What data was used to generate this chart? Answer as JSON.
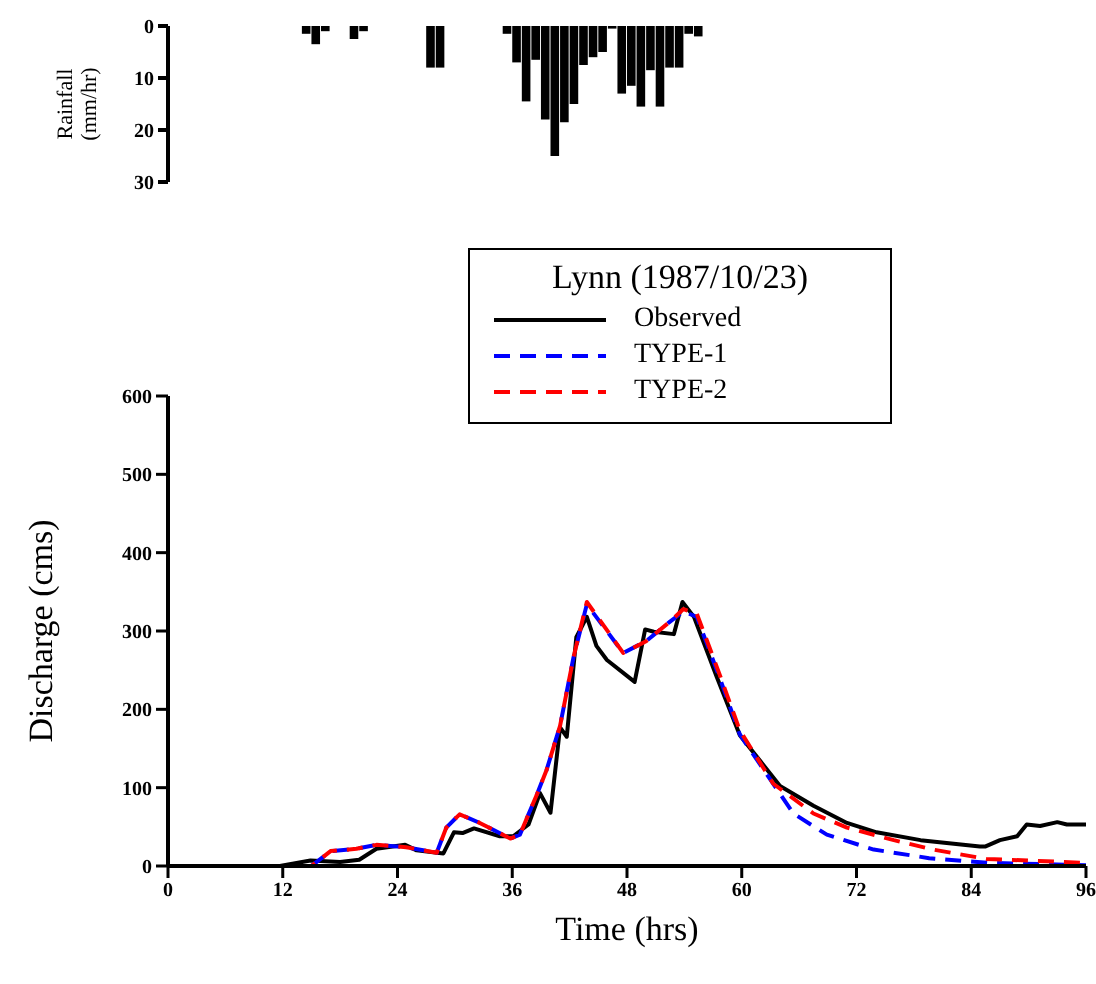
{
  "chart_data": [
    {
      "type": "bar",
      "ylabel": "Rainfall (mm/hr)",
      "x": [
        14.5,
        15.5,
        16.5,
        19.5,
        20.5,
        27.5,
        28.5,
        35.5,
        36.5,
        37.5,
        38.5,
        39.5,
        40.5,
        41.5,
        42.5,
        43.5,
        44.5,
        45.5,
        46.5,
        47.5,
        48.5,
        49.5,
        50.5,
        51.5,
        52.5,
        53.5,
        54.5,
        55.5
      ],
      "values": [
        1.5,
        3.5,
        1,
        2.5,
        1,
        8,
        8,
        1.5,
        7,
        14.5,
        6.5,
        18,
        25,
        18.5,
        15,
        7.5,
        6,
        5,
        0.5,
        13,
        11.5,
        15.5,
        8.5,
        15.5,
        8,
        8,
        1.5,
        2
      ],
      "color": "#000000",
      "xlim": [
        0,
        96
      ],
      "ylim": [
        30,
        0
      ],
      "yticks": [
        0,
        10,
        20,
        30
      ],
      "tick_labels": "y"
    },
    {
      "type": "line",
      "legend_title": "Lynn (1987/10/23)",
      "xlabel": "Time (hrs)",
      "ylabel": "Discharge (cms)",
      "xlim": [
        0,
        96
      ],
      "xticks": [
        0,
        12,
        24,
        36,
        48,
        60,
        72,
        84,
        96
      ],
      "ylim": [
        0,
        600
      ],
      "yticks": [
        0,
        100,
        200,
        300,
        400,
        500,
        600
      ],
      "legend": "top",
      "series": [
        {
          "name": "Observed",
          "color": "#000000",
          "line_style": "solid",
          "x": [
            0,
            11.7,
            14.9,
            18,
            20,
            21.8,
            24.8,
            26,
            28.8,
            29.9,
            30.8,
            32,
            34.7,
            36.1,
            37.7,
            38.9,
            40,
            41,
            41.7,
            42.7,
            43.8,
            44.8,
            45.9,
            48.8,
            49.9,
            50.8,
            52.9,
            53.8,
            55,
            57.4,
            59.8,
            64,
            67.5,
            71,
            74.1,
            78.7,
            84.9,
            85.5,
            87,
            88.8,
            89.8,
            91.2,
            93,
            94,
            96
          ],
          "values": [
            0,
            0,
            7,
            5,
            8,
            22,
            27,
            20,
            16,
            43,
            42,
            48,
            38,
            38,
            53,
            93,
            68,
            177,
            165,
            292,
            318,
            281,
            263,
            235,
            302,
            299,
            296,
            337,
            318,
            241,
            167,
            102,
            77,
            55,
            43,
            33,
            25,
            25,
            33,
            38,
            53,
            51,
            56,
            53,
            53
          ]
        },
        {
          "name": "TYPE-1",
          "color": "#0000ff",
          "line_style": "dashed",
          "x": [
            0,
            15,
            17,
            19.7,
            21.8,
            24.9,
            28.1,
            29.1,
            30.5,
            32.6,
            35.8,
            36.8,
            38.6,
            39.6,
            41,
            42.4,
            43.8,
            47.6,
            50,
            52.5,
            53.9,
            55.3,
            57.7,
            59.8,
            61.9,
            65.4,
            68.9,
            73.8,
            79.6,
            85.8,
            96
          ],
          "values": [
            0,
            0,
            19,
            22,
            27,
            24,
            17,
            49,
            66,
            55,
            35,
            40,
            92,
            123,
            179,
            266,
            334,
            272,
            287,
            312,
            325,
            318,
            240,
            168,
            130,
            67,
            40,
            21,
            10,
            4,
            1
          ]
        },
        {
          "name": "TYPE-2",
          "color": "#ff0000",
          "line_style": "dashed",
          "x": [
            0,
            15,
            17,
            19.7,
            21.8,
            24.9,
            28.1,
            29.1,
            30.5,
            32.6,
            35.8,
            36.8,
            38.6,
            39.6,
            41,
            42.4,
            43.8,
            47.6,
            50,
            52.5,
            53.9,
            55.3,
            57.7,
            59.8,
            63.3,
            67.5,
            71,
            75.9,
            80,
            85.6,
            96
          ],
          "values": [
            0,
            0,
            19,
            22,
            27,
            24,
            17,
            49,
            66,
            55,
            35,
            40,
            92,
            123,
            179,
            266,
            337,
            272,
            287,
            312,
            328,
            322,
            244,
            173,
            105,
            67,
            49,
            33,
            21,
            9,
            4
          ]
        }
      ]
    }
  ]
}
